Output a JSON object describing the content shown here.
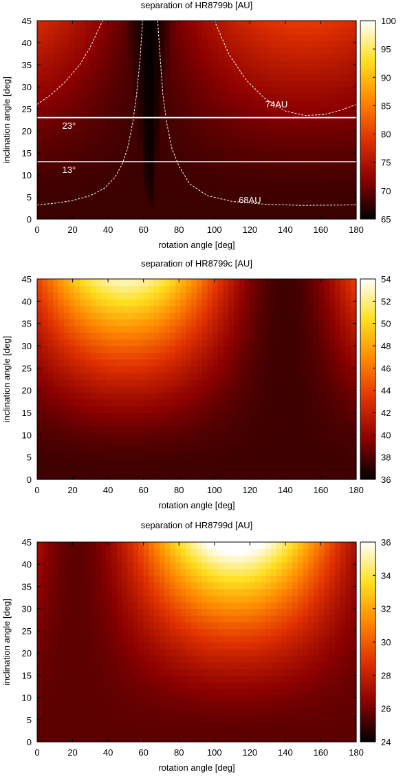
{
  "chart_data": [
    {
      "type": "heatmap",
      "title": "separation of HR8799b [AU]",
      "xlabel": "rotation angle [deg]",
      "ylabel": "inclination angle [deg]",
      "xlim": [
        0,
        180
      ],
      "ylim": [
        0,
        45
      ],
      "xticks": [
        "0",
        "20",
        "40",
        "60",
        "80",
        "100",
        "120",
        "140",
        "160",
        "180"
      ],
      "yticks": [
        "0",
        "5",
        "10",
        "15",
        "20",
        "25",
        "30",
        "35",
        "40",
        "45"
      ],
      "colorbar": {
        "range": [
          65,
          100
        ],
        "ticks": [
          "65",
          "70",
          "75",
          "80",
          "85",
          "90",
          "95",
          "100"
        ]
      },
      "colormap": [
        "#000000",
        "#8b0000",
        "#e03000",
        "#ff8800",
        "#ffe020",
        "#ffffff"
      ],
      "model": {
        "min": 65,
        "max": 100,
        "center": 151,
        "base": 68,
        "amp": 11.9,
        "p": 1.2,
        "pole": 63.5
      },
      "contours": [
        {
          "label": "74AU",
          "level": 74
        },
        {
          "label": "68AU",
          "level": 68
        }
      ],
      "hlines": [
        {
          "label": "23°",
          "y": 23
        },
        {
          "label": "13°",
          "y": 13
        }
      ]
    },
    {
      "type": "heatmap",
      "title": "separation of HR8799c [AU]",
      "xlabel": "rotation angle [deg]",
      "ylabel": "inclination angle [deg]",
      "xlim": [
        0,
        180
      ],
      "ylim": [
        0,
        45
      ],
      "xticks": [
        "0",
        "20",
        "40",
        "60",
        "80",
        "100",
        "120",
        "140",
        "160",
        "180"
      ],
      "yticks": [
        "0",
        "5",
        "10",
        "15",
        "20",
        "25",
        "30",
        "35",
        "40",
        "45"
      ],
      "colorbar": {
        "range": [
          36,
          54
        ],
        "ticks": [
          "36",
          "38",
          "40",
          "42",
          "44",
          "46",
          "48",
          "50",
          "52",
          "54"
        ]
      },
      "colormap": [
        "#000000",
        "#8b0000",
        "#e03000",
        "#ff8800",
        "#ffe020",
        "#ffffff"
      ],
      "model": {
        "min": 36,
        "max": 54,
        "center": 50,
        "base": 37.6,
        "amp": 15.5,
        "p": 2,
        "pole": null
      }
    },
    {
      "type": "heatmap",
      "title": "separation of HR8799d [AU]",
      "xlabel": "rotation angle [deg]",
      "ylabel": "inclination angle [deg]",
      "xlim": [
        0,
        180
      ],
      "ylim": [
        0,
        45
      ],
      "xticks": [
        "0",
        "20",
        "40",
        "60",
        "80",
        "100",
        "120",
        "140",
        "160",
        "180"
      ],
      "yticks": [
        "0",
        "5",
        "10",
        "15",
        "20",
        "25",
        "30",
        "35",
        "40",
        "45"
      ],
      "colorbar": {
        "range": [
          24,
          36
        ],
        "ticks": [
          "24",
          "26",
          "28",
          "30",
          "32",
          "34",
          "36"
        ]
      },
      "colormap": [
        "#000000",
        "#8b0000",
        "#e03000",
        "#ff8800",
        "#ffe020",
        "#ffffff"
      ],
      "model": {
        "min": 24,
        "max": 36,
        "center": 112,
        "base": 25.6,
        "amp": 11.3,
        "p": 2,
        "pole": null
      }
    }
  ]
}
